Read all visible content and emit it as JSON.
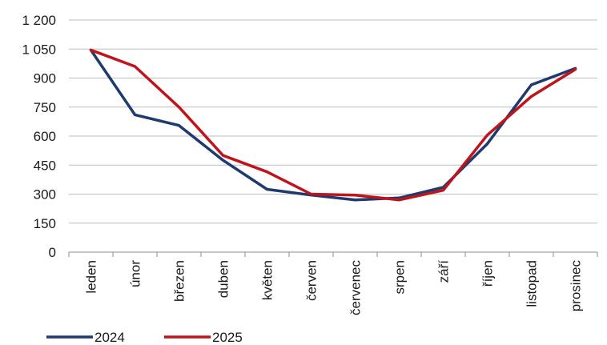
{
  "chart_data": {
    "type": "line",
    "categories": [
      "leden",
      "únor",
      "březen",
      "duben",
      "květen",
      "červen",
      "červenec",
      "srpen",
      "září",
      "říjen",
      "listopad",
      "prosinec"
    ],
    "ylim": [
      0,
      1200
    ],
    "yticks": [
      0,
      150,
      300,
      450,
      600,
      750,
      900,
      1050,
      1200
    ],
    "ytick_labels": [
      "0",
      "150",
      "300",
      "450",
      "600",
      "750",
      "900",
      "1 050",
      "1 200"
    ],
    "grid": true,
    "legend": "bottom-left",
    "series": [
      {
        "name": "2024",
        "color": "#1f3a6e",
        "values": [
          1045,
          710,
          655,
          475,
          325,
          295,
          270,
          280,
          335,
          560,
          865,
          950
        ]
      },
      {
        "name": "2025",
        "color": "#c0141c",
        "values": [
          1045,
          960,
          750,
          500,
          415,
          300,
          295,
          270,
          320,
          605,
          805,
          945
        ]
      }
    ]
  }
}
